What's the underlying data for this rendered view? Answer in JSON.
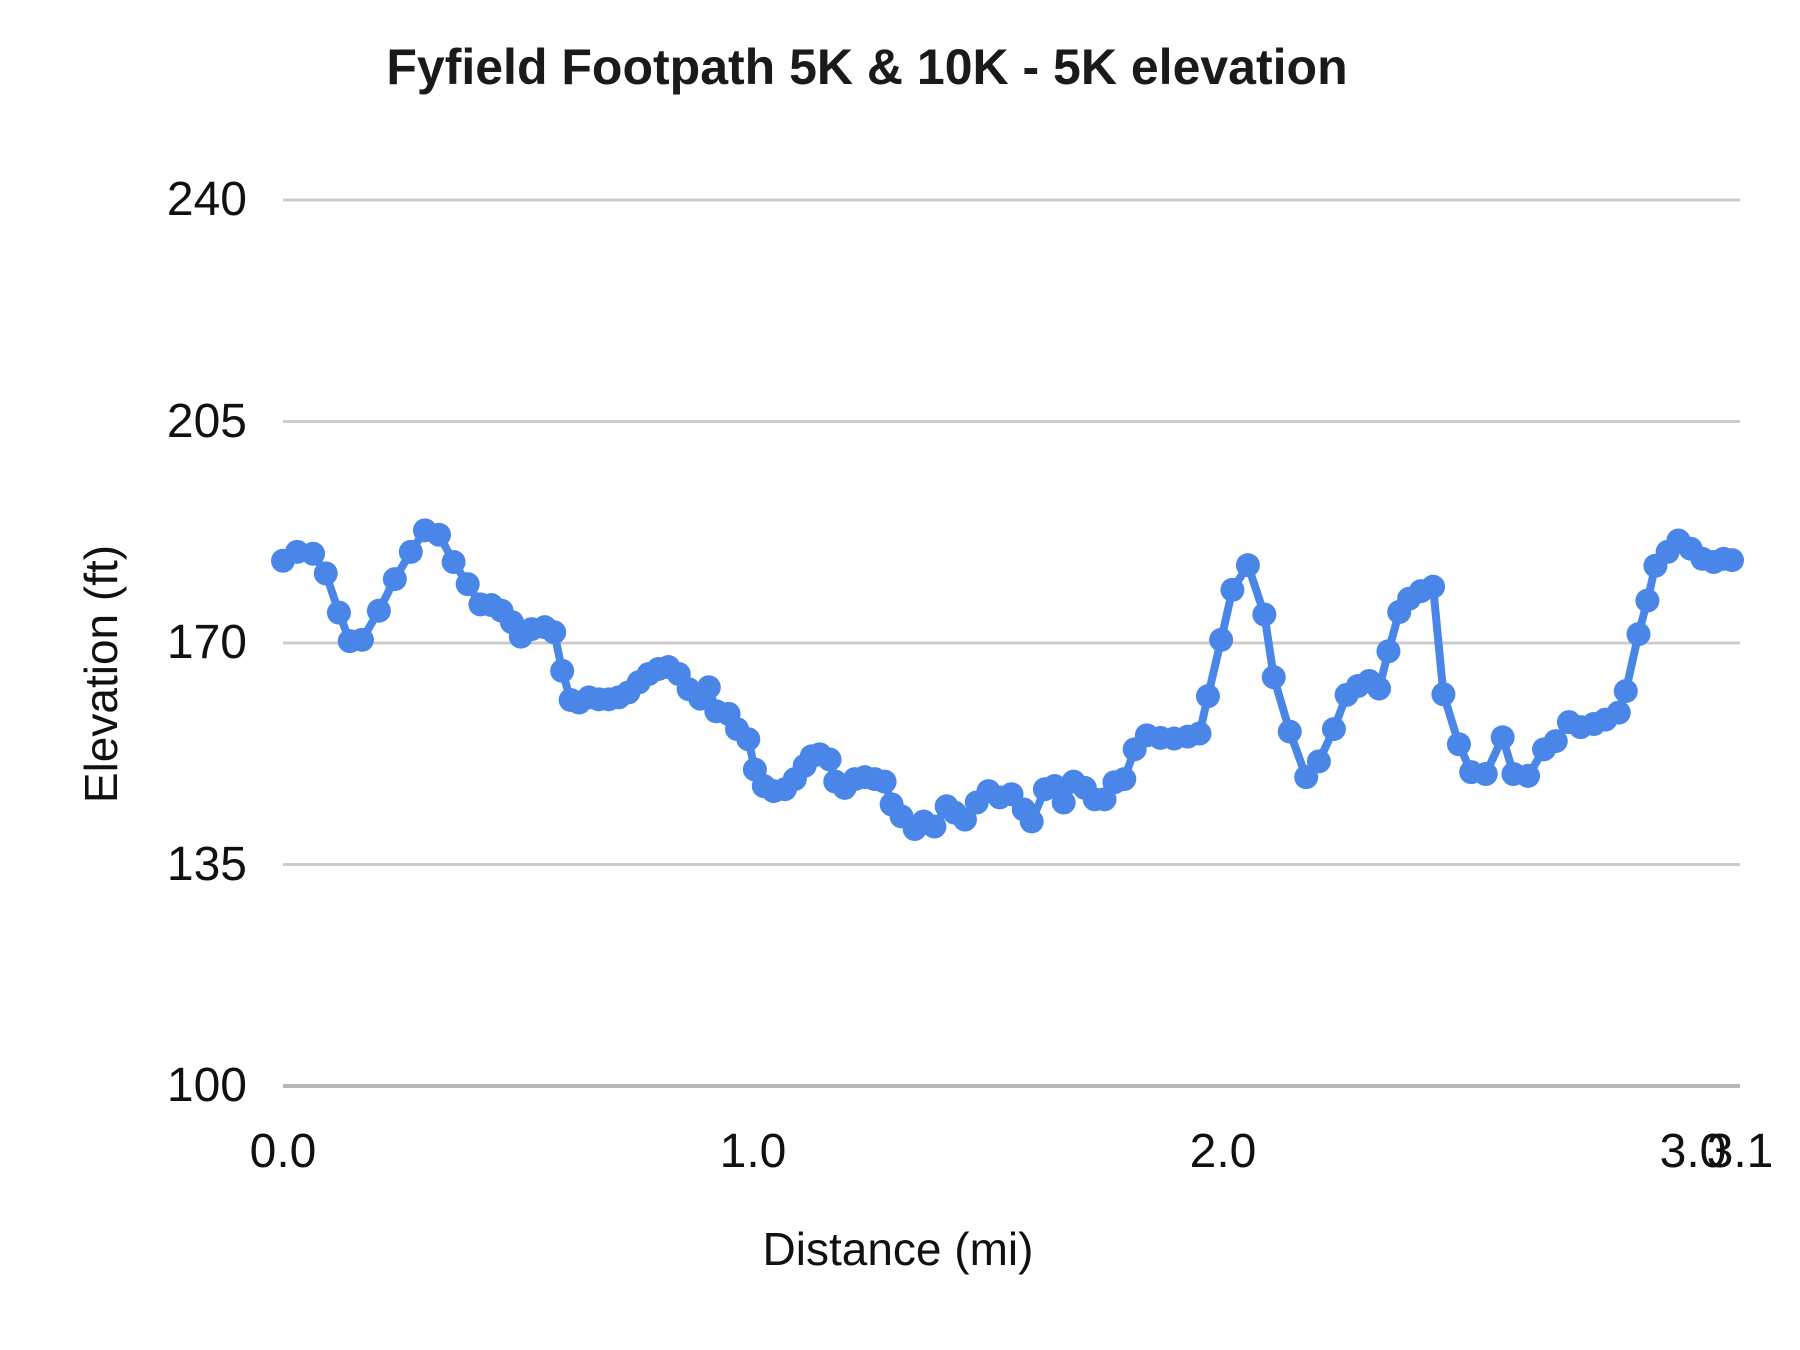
{
  "chart_data": {
    "type": "line",
    "title": "Fyfield Footpath 5K & 10K - 5K elevation",
    "xlabel": "Distance (mi)",
    "ylabel": "Elevation (ft)",
    "xlim": [
      0,
      3.1
    ],
    "ylim": [
      100,
      240
    ],
    "grid": "horizontal",
    "legend_position": "none",
    "series_color": "#4a86e8",
    "gridline_color": "#cccccc",
    "axisline_color": "#b7b7b7",
    "x_ticks": [
      {
        "value": 0.0,
        "label": "0.0"
      },
      {
        "value": 1.0,
        "label": "1.0"
      },
      {
        "value": 2.0,
        "label": "2.0"
      },
      {
        "value": 3.0,
        "label": "3.0"
      },
      {
        "value": 3.1,
        "label": "3.1"
      }
    ],
    "y_ticks": [
      {
        "value": 240,
        "label": "240"
      },
      {
        "value": 205,
        "label": "205"
      },
      {
        "value": 170,
        "label": "170"
      },
      {
        "value": 135,
        "label": "135"
      },
      {
        "value": 100,
        "label": "100"
      }
    ],
    "series": [
      {
        "name": "5K elevation",
        "color": "#4a86e8",
        "points": [
          [
            0.0,
            183.0
          ],
          [
            0.03,
            184.4
          ],
          [
            0.064,
            184.1
          ],
          [
            0.091,
            181.0
          ],
          [
            0.119,
            174.8
          ],
          [
            0.142,
            170.3
          ],
          [
            0.168,
            170.5
          ],
          [
            0.204,
            175.1
          ],
          [
            0.238,
            180.1
          ],
          [
            0.272,
            184.4
          ],
          [
            0.302,
            187.8
          ],
          [
            0.332,
            187.1
          ],
          [
            0.363,
            182.8
          ],
          [
            0.393,
            179.3
          ],
          [
            0.42,
            176.1
          ],
          [
            0.443,
            176.0
          ],
          [
            0.465,
            175.1
          ],
          [
            0.487,
            173.3
          ],
          [
            0.506,
            171.0
          ],
          [
            0.529,
            172.2
          ],
          [
            0.557,
            172.5
          ],
          [
            0.577,
            171.7
          ],
          [
            0.594,
            165.6
          ],
          [
            0.612,
            161.0
          ],
          [
            0.63,
            160.6
          ],
          [
            0.651,
            161.4
          ],
          [
            0.672,
            161.1
          ],
          [
            0.693,
            161.1
          ],
          [
            0.714,
            161.4
          ],
          [
            0.735,
            162.2
          ],
          [
            0.757,
            163.8
          ],
          [
            0.778,
            165.1
          ],
          [
            0.799,
            165.9
          ],
          [
            0.82,
            166.2
          ],
          [
            0.842,
            165.1
          ],
          [
            0.863,
            162.7
          ],
          [
            0.888,
            161.2
          ],
          [
            0.906,
            163.0
          ],
          [
            0.922,
            159.2
          ],
          [
            0.948,
            158.8
          ],
          [
            0.966,
            156.4
          ],
          [
            0.99,
            154.8
          ],
          [
            1.004,
            150.0
          ],
          [
            1.023,
            147.4
          ],
          [
            1.044,
            146.6
          ],
          [
            1.068,
            146.9
          ],
          [
            1.089,
            148.5
          ],
          [
            1.11,
            150.6
          ],
          [
            1.125,
            152.1
          ],
          [
            1.142,
            152.4
          ],
          [
            1.163,
            151.6
          ],
          [
            1.175,
            148.1
          ],
          [
            1.195,
            147.1
          ],
          [
            1.217,
            148.5
          ],
          [
            1.238,
            148.8
          ],
          [
            1.259,
            148.5
          ],
          [
            1.28,
            148.1
          ],
          [
            1.295,
            144.5
          ],
          [
            1.316,
            142.6
          ],
          [
            1.344,
            140.6
          ],
          [
            1.363,
            141.8
          ],
          [
            1.386,
            141.0
          ],
          [
            1.412,
            144.2
          ],
          [
            1.429,
            143.2
          ],
          [
            1.451,
            142.1
          ],
          [
            1.476,
            144.8
          ],
          [
            1.501,
            146.6
          ],
          [
            1.525,
            145.6
          ],
          [
            1.55,
            146.1
          ],
          [
            1.576,
            143.7
          ],
          [
            1.593,
            141.8
          ],
          [
            1.621,
            146.9
          ],
          [
            1.642,
            147.4
          ],
          [
            1.661,
            144.8
          ],
          [
            1.682,
            148.1
          ],
          [
            1.706,
            147.1
          ],
          [
            1.727,
            145.3
          ],
          [
            1.748,
            145.3
          ],
          [
            1.769,
            148.0
          ],
          [
            1.79,
            148.5
          ],
          [
            1.812,
            153.2
          ],
          [
            1.838,
            155.4
          ],
          [
            1.867,
            155.0
          ],
          [
            1.896,
            154.9
          ],
          [
            1.925,
            155.2
          ],
          [
            1.95,
            155.7
          ],
          [
            1.968,
            161.6
          ],
          [
            1.996,
            170.5
          ],
          [
            2.02,
            178.4
          ],
          [
            2.053,
            182.3
          ],
          [
            2.088,
            174.5
          ],
          [
            2.108,
            164.6
          ],
          [
            2.142,
            156.0
          ],
          [
            2.177,
            148.8
          ],
          [
            2.204,
            151.3
          ],
          [
            2.236,
            156.4
          ],
          [
            2.263,
            161.8
          ],
          [
            2.287,
            163.2
          ],
          [
            2.311,
            164.0
          ],
          [
            2.332,
            162.8
          ],
          [
            2.352,
            168.7
          ],
          [
            2.375,
            174.9
          ],
          [
            2.396,
            177.0
          ],
          [
            2.421,
            178.2
          ],
          [
            2.447,
            178.9
          ],
          [
            2.469,
            161.9
          ],
          [
            2.502,
            154.0
          ],
          [
            2.528,
            149.6
          ],
          [
            2.559,
            149.3
          ],
          [
            2.595,
            155.1
          ],
          [
            2.618,
            149.3
          ],
          [
            2.649,
            149.0
          ],
          [
            2.683,
            153.2
          ],
          [
            2.708,
            154.5
          ],
          [
            2.736,
            157.5
          ],
          [
            2.761,
            156.7
          ],
          [
            2.789,
            157.2
          ],
          [
            2.814,
            157.9
          ],
          [
            2.842,
            159.0
          ],
          [
            2.857,
            162.4
          ],
          [
            2.884,
            171.4
          ],
          [
            2.903,
            176.7
          ],
          [
            2.92,
            182.2
          ],
          [
            2.946,
            184.4
          ],
          [
            2.969,
            186.2
          ],
          [
            2.995,
            184.9
          ],
          [
            3.02,
            183.3
          ],
          [
            3.044,
            182.8
          ],
          [
            3.065,
            183.3
          ],
          [
            3.083,
            183.1
          ]
        ]
      }
    ]
  }
}
